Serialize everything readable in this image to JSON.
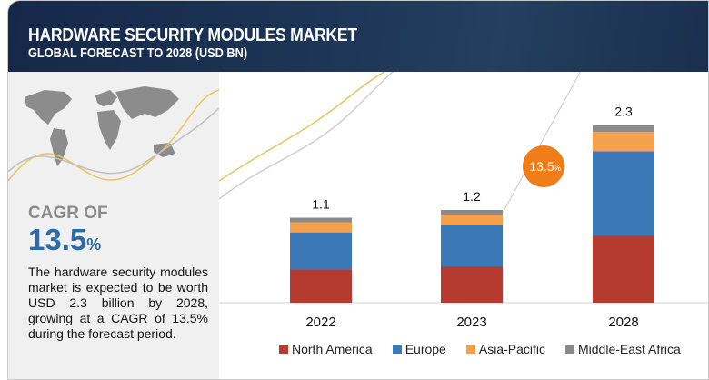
{
  "header": {
    "title": "HARDWARE SECURITY MODULES MARKET",
    "subtitle": "GLOBAL FORECAST TO 2028 (USD BN)"
  },
  "summary": {
    "cagr_label": "CAGR OF",
    "cagr_value": "13.5",
    "cagr_unit": "%",
    "description": "The hardware security modules market is expected to be worth USD 2.3 billion by 2028, growing at a CAGR of 13.5% during the forecast period."
  },
  "chart_data": {
    "type": "bar",
    "stacked": true,
    "title": "Hardware Security Modules Market, Global Forecast to 2028 (USD BN)",
    "categories": [
      "2022",
      "2023",
      "2028"
    ],
    "totals": [
      "1.1",
      "1.2",
      "2.3"
    ],
    "series": [
      {
        "name": "North America",
        "color": "#b53a2f",
        "values": [
          0.43,
          0.47,
          0.87
        ]
      },
      {
        "name": "Europe",
        "color": "#3a78b8",
        "values": [
          0.48,
          0.53,
          1.09
        ]
      },
      {
        "name": "Asia-Pacific",
        "color": "#f5a04a",
        "values": [
          0.13,
          0.14,
          0.25
        ]
      },
      {
        "name": "Middle-East Africa",
        "color": "#8a8a8a",
        "values": [
          0.06,
          0.06,
          0.09
        ]
      }
    ],
    "annotation": {
      "label": "13.5",
      "unit": "%",
      "color": "#f07d18"
    },
    "legend_position": "bottom"
  }
}
